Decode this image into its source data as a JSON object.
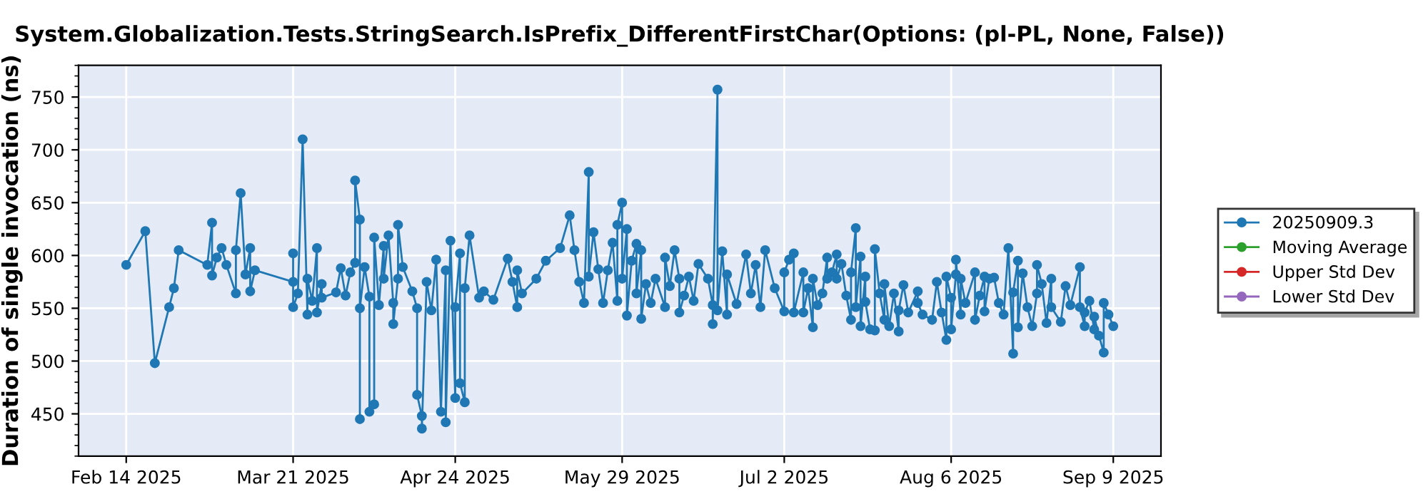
{
  "chart_data": {
    "type": "line",
    "title": "System.Globalization.Tests.StringSearch.IsPrefix_DifferentFirstChar(Options: (pl-PL, None, False))",
    "ylabel": "Duration of single invocation (ns)",
    "xlim": [
      "2025-02-04",
      "2025-09-19"
    ],
    "xticks": [
      {
        "value": "2025-02-14",
        "label": "Feb 14 2025"
      },
      {
        "value": "2025-03-21",
        "label": "Mar 21 2025"
      },
      {
        "value": "2025-04-24",
        "label": "Apr 24 2025"
      },
      {
        "value": "2025-05-29",
        "label": "May 29 2025"
      },
      {
        "value": "2025-07-02",
        "label": "Jul 2 2025"
      },
      {
        "value": "2025-08-06",
        "label": "Aug 6 2025"
      },
      {
        "value": "2025-09-09",
        "label": "Sep 9 2025"
      }
    ],
    "ylim": [
      410,
      780
    ],
    "yticks": [
      450,
      500,
      550,
      600,
      650,
      700,
      750
    ],
    "grid": true,
    "legend": "right",
    "marker": "circle",
    "line_style": "solid",
    "series": [
      {
        "name": "20250909.3",
        "color": "#1f77b4",
        "x": [
          "2025-02-14",
          "2025-02-18",
          "2025-02-20",
          "2025-02-23",
          "2025-02-24",
          "2025-02-25",
          "2025-03-03",
          "2025-03-04",
          "2025-03-04",
          "2025-03-05",
          "2025-03-06",
          "2025-03-07",
          "2025-03-09",
          "2025-03-09",
          "2025-03-10",
          "2025-03-11",
          "2025-03-12",
          "2025-03-12",
          "2025-03-13",
          "2025-03-21",
          "2025-03-21",
          "2025-03-21",
          "2025-03-22",
          "2025-03-23",
          "2025-03-24",
          "2025-03-24",
          "2025-03-25",
          "2025-03-26",
          "2025-03-26",
          "2025-03-27",
          "2025-03-27",
          "2025-03-30",
          "2025-03-31",
          "2025-04-01",
          "2025-04-02",
          "2025-04-03",
          "2025-04-03",
          "2025-04-04",
          "2025-04-04",
          "2025-04-04",
          "2025-04-05",
          "2025-04-06",
          "2025-04-06",
          "2025-04-07",
          "2025-04-07",
          "2025-04-08",
          "2025-04-09",
          "2025-04-09",
          "2025-04-10",
          "2025-04-11",
          "2025-04-11",
          "2025-04-12",
          "2025-04-12",
          "2025-04-13",
          "2025-04-15",
          "2025-04-16",
          "2025-04-16",
          "2025-04-17",
          "2025-04-17",
          "2025-04-18",
          "2025-04-19",
          "2025-04-20",
          "2025-04-21",
          "2025-04-22",
          "2025-04-22",
          "2025-04-23",
          "2025-04-24",
          "2025-04-24",
          "2025-04-25",
          "2025-04-25",
          "2025-04-26",
          "2025-04-26",
          "2025-04-27",
          "2025-04-29",
          "2025-04-30",
          "2025-05-02",
          "2025-05-05",
          "2025-05-06",
          "2025-05-07",
          "2025-05-07",
          "2025-05-08",
          "2025-05-11",
          "2025-05-13",
          "2025-05-16",
          "2025-05-18",
          "2025-05-19",
          "2025-05-20",
          "2025-05-21",
          "2025-05-22",
          "2025-05-22",
          "2025-05-23",
          "2025-05-24",
          "2025-05-25",
          "2025-05-26",
          "2025-05-27",
          "2025-05-28",
          "2025-05-28",
          "2025-05-29",
          "2025-05-29",
          "2025-05-30",
          "2025-05-30",
          "2025-05-31",
          "2025-06-01",
          "2025-06-01",
          "2025-06-02",
          "2025-06-02",
          "2025-06-03",
          "2025-06-04",
          "2025-06-05",
          "2025-06-07",
          "2025-06-07",
          "2025-06-08",
          "2025-06-09",
          "2025-06-10",
          "2025-06-10",
          "2025-06-11",
          "2025-06-12",
          "2025-06-13",
          "2025-06-14",
          "2025-06-16",
          "2025-06-17",
          "2025-06-17",
          "2025-06-18",
          "2025-06-18",
          "2025-06-19",
          "2025-06-20",
          "2025-06-20",
          "2025-06-22",
          "2025-06-24",
          "2025-06-25",
          "2025-06-26",
          "2025-06-27",
          "2025-06-28",
          "2025-06-30",
          "2025-07-02",
          "2025-07-02",
          "2025-07-03",
          "2025-07-04",
          "2025-07-04",
          "2025-07-06",
          "2025-07-06",
          "2025-07-07",
          "2025-07-08",
          "2025-07-08",
          "2025-07-09",
          "2025-07-10",
          "2025-07-11",
          "2025-07-11",
          "2025-07-12",
          "2025-07-13",
          "2025-07-13",
          "2025-07-14",
          "2025-07-15",
          "2025-07-16",
          "2025-07-16",
          "2025-07-17",
          "2025-07-17",
          "2025-07-18",
          "2025-07-18",
          "2025-07-19",
          "2025-07-19",
          "2025-07-20",
          "2025-07-21",
          "2025-07-21",
          "2025-07-22",
          "2025-07-23",
          "2025-07-23",
          "2025-07-24",
          "2025-07-25",
          "2025-07-26",
          "2025-07-26",
          "2025-07-27",
          "2025-07-28",
          "2025-07-30",
          "2025-07-30",
          "2025-07-31",
          "2025-08-02",
          "2025-08-03",
          "2025-08-04",
          "2025-08-05",
          "2025-08-05",
          "2025-08-06",
          "2025-08-06",
          "2025-08-07",
          "2025-08-07",
          "2025-08-08",
          "2025-08-08",
          "2025-08-09",
          "2025-08-11",
          "2025-08-11",
          "2025-08-12",
          "2025-08-13",
          "2025-08-13",
          "2025-08-14",
          "2025-08-15",
          "2025-08-16",
          "2025-08-17",
          "2025-08-18",
          "2025-08-19",
          "2025-08-19",
          "2025-08-20",
          "2025-08-20",
          "2025-08-21",
          "2025-08-22",
          "2025-08-23",
          "2025-08-24",
          "2025-08-24",
          "2025-08-25",
          "2025-08-26",
          "2025-08-27",
          "2025-08-27",
          "2025-08-29",
          "2025-08-30",
          "2025-08-31",
          "2025-09-02",
          "2025-09-02",
          "2025-09-03",
          "2025-09-03",
          "2025-09-04",
          "2025-09-05",
          "2025-09-05",
          "2025-09-06",
          "2025-09-07",
          "2025-09-07",
          "2025-09-08",
          "2025-09-09"
        ],
        "values": [
          591,
          623,
          498,
          551,
          569,
          605,
          591,
          631,
          581,
          598,
          607,
          591,
          564,
          605,
          659,
          582,
          607,
          566,
          586,
          575,
          602,
          551,
          564,
          710,
          544,
          578,
          557,
          607,
          546,
          573,
          560,
          565,
          588,
          562,
          584,
          593,
          671,
          634,
          445,
          550,
          589,
          561,
          452,
          459,
          617,
          553,
          609,
          578,
          619,
          555,
          535,
          578,
          629,
          589,
          566,
          550,
          468,
          448,
          436,
          575,
          548,
          596,
          452,
          586,
          442,
          614,
          465,
          551,
          602,
          479,
          461,
          569,
          619,
          560,
          566,
          558,
          597,
          575,
          551,
          586,
          564,
          578,
          595,
          607,
          638,
          605,
          575,
          555,
          679,
          580,
          622,
          587,
          555,
          586,
          612,
          557,
          629,
          650,
          578,
          625,
          543,
          595,
          611,
          564,
          605,
          540,
          573,
          555,
          578,
          551,
          598,
          571,
          605,
          578,
          546,
          562,
          580,
          557,
          592,
          578,
          553,
          535,
          757,
          548,
          604,
          544,
          582,
          554,
          601,
          564,
          591,
          551,
          605,
          569,
          547,
          584,
          596,
          602,
          546,
          584,
          546,
          569,
          532,
          578,
          553,
          564,
          598,
          578,
          584,
          601,
          578,
          592,
          562,
          539,
          584,
          626,
          551,
          599,
          533,
          580,
          556,
          530,
          529,
          606,
          564,
          539,
          573,
          533,
          564,
          528,
          548,
          572,
          546,
          566,
          555,
          544,
          539,
          575,
          546,
          520,
          580,
          560,
          530,
          582,
          596,
          544,
          578,
          555,
          584,
          539,
          562,
          580,
          547,
          578,
          579,
          555,
          544,
          607,
          507,
          565,
          595,
          532,
          583,
          551,
          533,
          564,
          591,
          573,
          536,
          578,
          551,
          537,
          571,
          553,
          589,
          551,
          533,
          546,
          557,
          530,
          542,
          524,
          508,
          555,
          544,
          533
        ]
      },
      {
        "name": "Moving Average",
        "color": "#2ca02c"
      },
      {
        "name": "Upper Std Dev",
        "color": "#d62728"
      },
      {
        "name": "Lower Std Dev",
        "color": "#9467bd"
      }
    ]
  }
}
